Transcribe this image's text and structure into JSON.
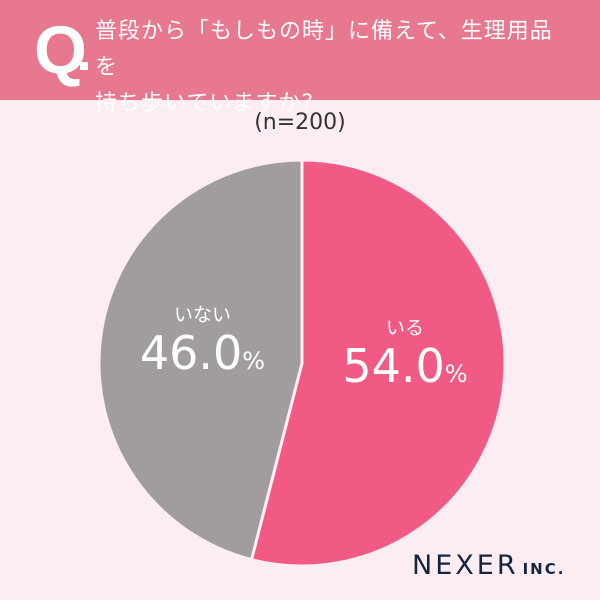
{
  "header": {
    "q_label": "Q",
    "question_line1": "普段から「もしもの時」に備えて、生理用品を",
    "question_line2": "持ち歩いていますか?",
    "background_color": "#e8788f"
  },
  "sample_size": "(n=200)",
  "chart_data": {
    "type": "pie",
    "title": "普段から「もしもの時」に備えて、生理用品を持ち歩いていますか?",
    "subtitle": "(n=200)",
    "categories": [
      "いる",
      "いない"
    ],
    "values": [
      54.0,
      46.0
    ],
    "unit": "%",
    "colors": [
      "#f05a85",
      "#a19d9f"
    ],
    "start_angle": "12 o'clock, clockwise",
    "labels": [
      {
        "category": "いる",
        "value": "54.0",
        "unit": "%"
      },
      {
        "category": "いない",
        "value": "46.0",
        "unit": "%"
      }
    ]
  },
  "logo": {
    "main": "NEXER",
    "suffix": "INC."
  }
}
